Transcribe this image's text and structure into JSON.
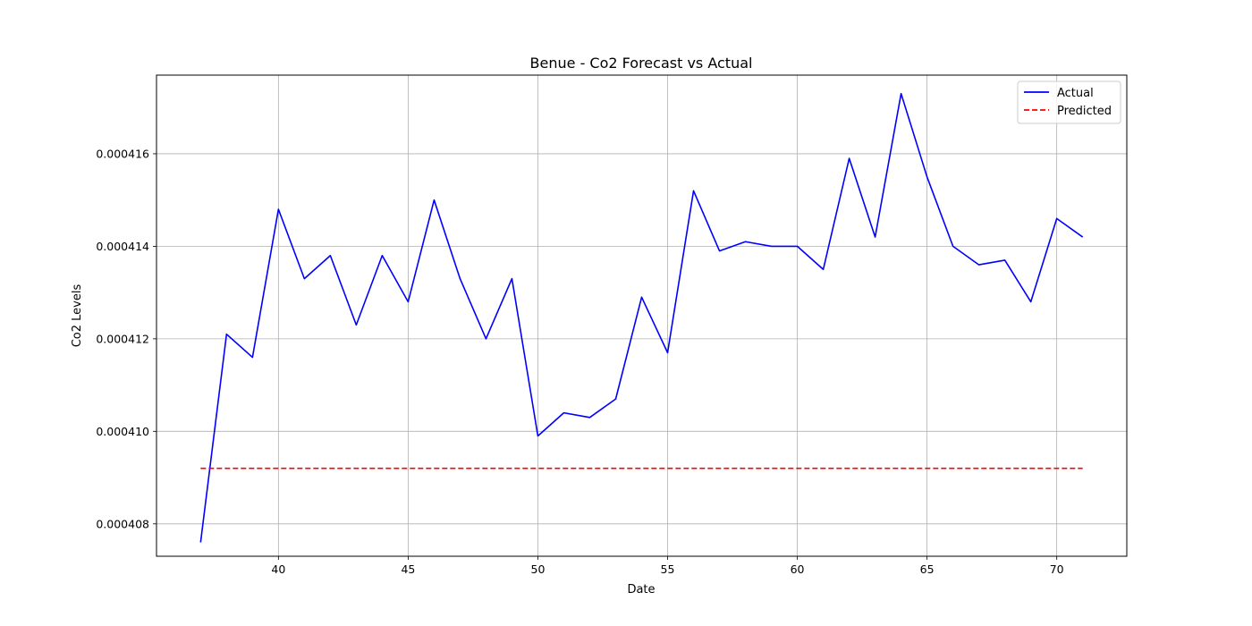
{
  "chart_data": {
    "type": "line",
    "title": "Benue - Co2 Forecast vs Actual",
    "xlabel": "Date",
    "ylabel": "Co2 Levels",
    "xlim": [
      35.3,
      72.7
    ],
    "ylim": [
      0.0004073,
      0.0004177
    ],
    "grid": true,
    "legend_position": "top-right",
    "x_ticks": [
      40,
      45,
      50,
      55,
      60,
      65,
      70
    ],
    "y_ticks": [
      0.000408,
      0.00041,
      0.000412,
      0.000414,
      0.000416
    ],
    "y_tick_labels": [
      "0.000408",
      "0.000410",
      "0.000412",
      "0.000414",
      "0.000416"
    ],
    "series": [
      {
        "name": "Actual",
        "color": "#0000ff",
        "style": "solid",
        "x": [
          37,
          38,
          39,
          40,
          41,
          42,
          43,
          44,
          45,
          46,
          47,
          48,
          49,
          50,
          51,
          52,
          53,
          54,
          55,
          56,
          57,
          58,
          59,
          60,
          61,
          62,
          63,
          64,
          65,
          66,
          67,
          68,
          69,
          70,
          71
        ],
        "values": [
          0.0004076,
          0.0004121,
          0.0004116,
          0.0004148,
          0.0004133,
          0.0004138,
          0.0004123,
          0.0004138,
          0.0004128,
          0.000415,
          0.0004133,
          0.000412,
          0.0004133,
          0.0004099,
          0.0004104,
          0.0004103,
          0.0004107,
          0.0004129,
          0.0004117,
          0.0004152,
          0.0004139,
          0.0004141,
          0.000414,
          0.000414,
          0.0004135,
          0.0004159,
          0.0004142,
          0.0004173,
          0.0004155,
          0.000414,
          0.0004136,
          0.0004137,
          0.0004128,
          0.0004146,
          0.0004142
        ]
      },
      {
        "name": "Predicted",
        "color": "#ff0000",
        "style": "dashed",
        "x": [
          37,
          71
        ],
        "values": [
          0.0004092,
          0.0004092
        ]
      }
    ]
  }
}
